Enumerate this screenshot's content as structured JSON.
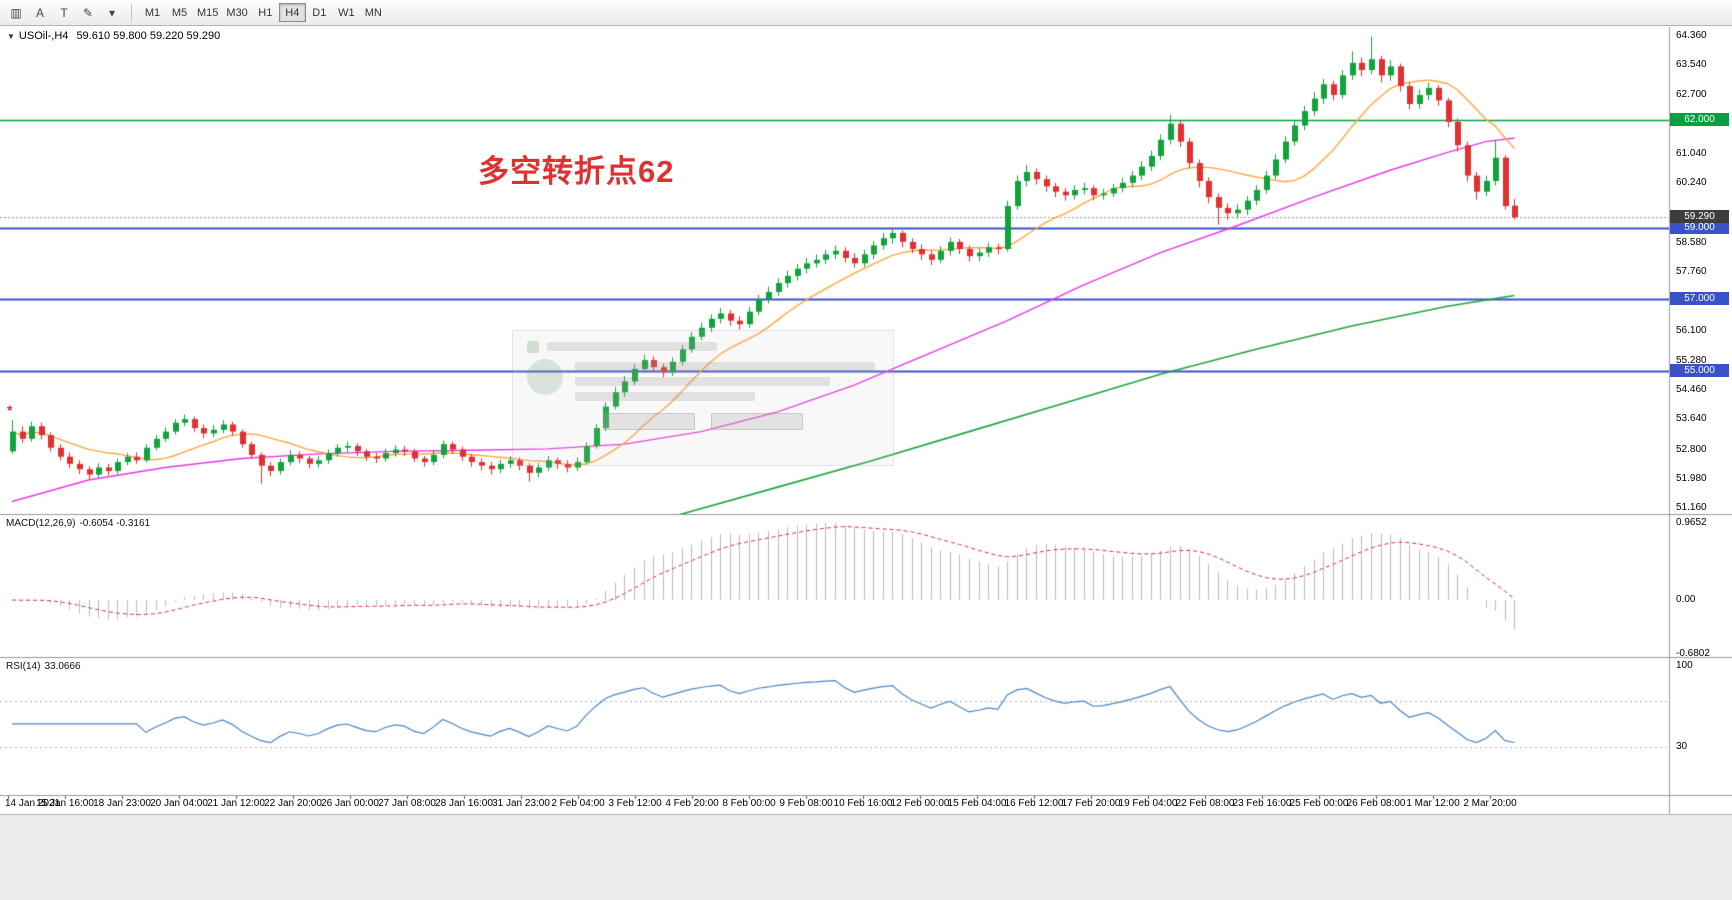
{
  "toolbar": {
    "icon_buttons": [
      {
        "name": "chart-grid-icon",
        "glyph": "▥"
      },
      {
        "name": "text-label-button",
        "glyph": "A"
      },
      {
        "name": "text-cursor-button",
        "glyph": "T"
      },
      {
        "name": "draw-tools-button",
        "glyph": "✎"
      },
      {
        "name": "draw-tools-chevron-icon",
        "glyph": "▾"
      }
    ],
    "timeframes": [
      "M1",
      "M5",
      "M15",
      "M30",
      "H1",
      "H4",
      "D1",
      "W1",
      "MN"
    ],
    "active_timeframe": "H4"
  },
  "symbol_line": {
    "arrow_glyph": "▼",
    "symbol": "USOil-,H4",
    "ohlc": "59.610 59.800 59.220 59.290"
  },
  "annotation": {
    "text": "多空转折点62",
    "color": "#e03030"
  },
  "watermark_dialog": {
    "present": true
  },
  "chart_data": {
    "type": "candlestick",
    "title": "USOil-,H4",
    "symbol": "USOil-",
    "timeframe": "H4",
    "up_color": "#12a23c",
    "down_color": "#e03030",
    "price_axis": {
      "min": 51.0,
      "max": 64.6,
      "ticks": [
        "64.360",
        "63.540",
        "62.700",
        "61.040",
        "60.240",
        "58.580",
        "57.760",
        "56.100",
        "55.280",
        "54.460",
        "53.640",
        "52.800",
        "51.980",
        "51.160"
      ]
    },
    "candles": [
      [
        52.75,
        53.62,
        52.68,
        53.3
      ],
      [
        53.3,
        53.45,
        52.98,
        53.1
      ],
      [
        53.1,
        53.58,
        53.02,
        53.45
      ],
      [
        53.45,
        53.55,
        53.08,
        53.2
      ],
      [
        53.2,
        53.28,
        52.75,
        52.85
      ],
      [
        52.85,
        52.95,
        52.5,
        52.6
      ],
      [
        52.6,
        52.72,
        52.28,
        52.4
      ],
      [
        52.4,
        52.5,
        52.12,
        52.25
      ],
      [
        52.25,
        52.33,
        51.98,
        52.1
      ],
      [
        52.1,
        52.42,
        52.02,
        52.3
      ],
      [
        52.3,
        52.4,
        52.08,
        52.2
      ],
      [
        52.2,
        52.55,
        52.12,
        52.45
      ],
      [
        52.45,
        52.7,
        52.36,
        52.6
      ],
      [
        52.6,
        52.72,
        52.4,
        52.5
      ],
      [
        52.5,
        52.95,
        52.44,
        52.85
      ],
      [
        52.85,
        53.2,
        52.78,
        53.1
      ],
      [
        53.1,
        53.42,
        53.02,
        53.3
      ],
      [
        53.3,
        53.65,
        53.22,
        53.55
      ],
      [
        53.55,
        53.78,
        53.45,
        53.65
      ],
      [
        53.65,
        53.72,
        53.3,
        53.4
      ],
      [
        53.4,
        53.5,
        53.12,
        53.25
      ],
      [
        53.25,
        53.48,
        53.15,
        53.35
      ],
      [
        53.35,
        53.62,
        53.26,
        53.5
      ],
      [
        53.5,
        53.58,
        53.18,
        53.3
      ],
      [
        53.3,
        53.36,
        52.85,
        52.95
      ],
      [
        52.95,
        53.02,
        52.55,
        52.65
      ],
      [
        52.65,
        52.72,
        51.85,
        52.35
      ],
      [
        52.35,
        52.45,
        52.05,
        52.2
      ],
      [
        52.2,
        52.55,
        52.1,
        52.45
      ],
      [
        52.45,
        52.78,
        52.36,
        52.65
      ],
      [
        52.65,
        52.75,
        52.42,
        52.55
      ],
      [
        52.55,
        52.62,
        52.28,
        52.4
      ],
      [
        52.4,
        52.62,
        52.3,
        52.5
      ],
      [
        52.5,
        52.8,
        52.4,
        52.7
      ],
      [
        52.7,
        52.95,
        52.6,
        52.85
      ],
      [
        52.85,
        53.02,
        52.72,
        52.9
      ],
      [
        52.9,
        52.98,
        52.62,
        52.75
      ],
      [
        52.75,
        52.82,
        52.48,
        52.6
      ],
      [
        52.6,
        52.7,
        52.42,
        52.55
      ],
      [
        52.55,
        52.82,
        52.46,
        52.7
      ],
      [
        52.7,
        52.92,
        52.6,
        52.8
      ],
      [
        52.8,
        52.9,
        52.62,
        52.75
      ],
      [
        52.75,
        52.82,
        52.45,
        52.55
      ],
      [
        52.55,
        52.62,
        52.32,
        52.45
      ],
      [
        52.45,
        52.78,
        52.36,
        52.65
      ],
      [
        52.65,
        53.05,
        52.55,
        52.95
      ],
      [
        52.95,
        53.02,
        52.68,
        52.8
      ],
      [
        52.8,
        52.88,
        52.48,
        52.6
      ],
      [
        52.6,
        52.68,
        52.32,
        52.45
      ],
      [
        52.45,
        52.55,
        52.22,
        52.35
      ],
      [
        52.35,
        52.45,
        52.1,
        52.25
      ],
      [
        52.25,
        52.52,
        52.14,
        52.4
      ],
      [
        52.4,
        52.62,
        52.28,
        52.5
      ],
      [
        52.5,
        52.58,
        52.22,
        52.35
      ],
      [
        52.35,
        52.42,
        51.9,
        52.15
      ],
      [
        52.15,
        52.42,
        52.02,
        52.3
      ],
      [
        52.3,
        52.62,
        52.2,
        52.5
      ],
      [
        52.5,
        52.58,
        52.26,
        52.4
      ],
      [
        52.4,
        52.5,
        52.16,
        52.3
      ],
      [
        52.3,
        52.58,
        52.2,
        52.45
      ],
      [
        52.45,
        53.0,
        52.38,
        52.9
      ],
      [
        52.9,
        53.52,
        52.82,
        53.4
      ],
      [
        53.4,
        54.12,
        53.32,
        54.0
      ],
      [
        54.0,
        54.55,
        53.92,
        54.4
      ],
      [
        54.4,
        54.85,
        54.28,
        54.7
      ],
      [
        54.7,
        55.18,
        54.6,
        55.05
      ],
      [
        55.05,
        55.45,
        54.95,
        55.3
      ],
      [
        55.3,
        55.4,
        54.98,
        55.1
      ],
      [
        55.1,
        55.2,
        54.82,
        54.95
      ],
      [
        54.95,
        55.38,
        54.85,
        55.25
      ],
      [
        55.25,
        55.72,
        55.15,
        55.6
      ],
      [
        55.6,
        56.08,
        55.5,
        55.95
      ],
      [
        55.95,
        56.35,
        55.85,
        56.2
      ],
      [
        56.2,
        56.58,
        56.08,
        56.45
      ],
      [
        56.45,
        56.75,
        56.32,
        56.6
      ],
      [
        56.6,
        56.7,
        56.26,
        56.4
      ],
      [
        56.4,
        56.52,
        56.15,
        56.3
      ],
      [
        56.3,
        56.78,
        56.2,
        56.65
      ],
      [
        56.65,
        57.12,
        56.55,
        57.0
      ],
      [
        57.0,
        57.35,
        56.88,
        57.2
      ],
      [
        57.2,
        57.58,
        57.08,
        57.45
      ],
      [
        57.45,
        57.8,
        57.32,
        57.65
      ],
      [
        57.65,
        57.98,
        57.52,
        57.85
      ],
      [
        57.85,
        58.15,
        57.72,
        58.0
      ],
      [
        58.0,
        58.25,
        57.88,
        58.1
      ],
      [
        58.1,
        58.38,
        57.98,
        58.25
      ],
      [
        58.25,
        58.5,
        58.12,
        58.35
      ],
      [
        58.35,
        58.45,
        58.02,
        58.15
      ],
      [
        58.15,
        58.28,
        57.88,
        58.0
      ],
      [
        58.0,
        58.38,
        57.9,
        58.25
      ],
      [
        58.25,
        58.62,
        58.12,
        58.5
      ],
      [
        58.5,
        58.85,
        58.38,
        58.7
      ],
      [
        58.7,
        58.95,
        58.55,
        58.85
      ],
      [
        58.85,
        58.92,
        58.45,
        58.6
      ],
      [
        58.6,
        58.7,
        58.28,
        58.4
      ],
      [
        58.4,
        58.52,
        58.1,
        58.25
      ],
      [
        58.25,
        58.35,
        57.95,
        58.1
      ],
      [
        58.1,
        58.48,
        58.0,
        58.35
      ],
      [
        58.35,
        58.72,
        58.22,
        58.6
      ],
      [
        58.6,
        58.68,
        58.26,
        58.4
      ],
      [
        58.4,
        58.5,
        58.05,
        58.2
      ],
      [
        58.2,
        58.42,
        58.06,
        58.3
      ],
      [
        58.3,
        58.58,
        58.18,
        58.45
      ],
      [
        58.45,
        58.55,
        58.25,
        58.4
      ],
      [
        58.4,
        59.75,
        58.32,
        59.6
      ],
      [
        59.6,
        60.45,
        59.5,
        60.3
      ],
      [
        60.3,
        60.75,
        60.15,
        60.55
      ],
      [
        60.55,
        60.65,
        60.2,
        60.35
      ],
      [
        60.35,
        60.45,
        60.0,
        60.15
      ],
      [
        60.15,
        60.25,
        59.85,
        60.0
      ],
      [
        60.0,
        60.1,
        59.75,
        59.9
      ],
      [
        59.9,
        60.18,
        59.78,
        60.05
      ],
      [
        60.05,
        60.25,
        59.92,
        60.1
      ],
      [
        60.1,
        60.18,
        59.76,
        59.9
      ],
      [
        59.9,
        60.08,
        59.78,
        59.95
      ],
      [
        59.95,
        60.22,
        59.85,
        60.1
      ],
      [
        60.1,
        60.38,
        59.98,
        60.25
      ],
      [
        60.25,
        60.58,
        60.12,
        60.45
      ],
      [
        60.45,
        60.85,
        60.32,
        60.7
      ],
      [
        60.7,
        61.15,
        60.58,
        61.0
      ],
      [
        61.0,
        61.6,
        60.88,
        61.45
      ],
      [
        61.45,
        62.15,
        61.32,
        61.9
      ],
      [
        61.9,
        62.0,
        61.25,
        61.4
      ],
      [
        61.4,
        61.5,
        60.65,
        60.8
      ],
      [
        60.8,
        60.9,
        60.12,
        60.3
      ],
      [
        60.3,
        60.4,
        59.68,
        59.85
      ],
      [
        59.85,
        59.95,
        59.08,
        59.55
      ],
      [
        59.55,
        59.68,
        59.22,
        59.4
      ],
      [
        59.4,
        59.65,
        59.25,
        59.5
      ],
      [
        59.5,
        59.88,
        59.35,
        59.75
      ],
      [
        59.75,
        60.18,
        59.62,
        60.05
      ],
      [
        60.05,
        60.58,
        59.95,
        60.45
      ],
      [
        60.45,
        61.05,
        60.35,
        60.9
      ],
      [
        60.9,
        61.55,
        60.8,
        61.4
      ],
      [
        61.4,
        62.0,
        61.28,
        61.85
      ],
      [
        61.85,
        62.4,
        61.72,
        62.25
      ],
      [
        62.25,
        62.78,
        62.12,
        62.6
      ],
      [
        62.6,
        63.15,
        62.45,
        63.0
      ],
      [
        63.0,
        63.1,
        62.55,
        62.7
      ],
      [
        62.7,
        63.4,
        62.6,
        63.25
      ],
      [
        63.25,
        63.92,
        63.12,
        63.6
      ],
      [
        63.6,
        63.75,
        63.22,
        63.4
      ],
      [
        63.4,
        64.33,
        63.28,
        63.7
      ],
      [
        63.7,
        63.8,
        63.05,
        63.25
      ],
      [
        63.25,
        63.68,
        63.1,
        63.5
      ],
      [
        63.5,
        63.58,
        62.8,
        62.95
      ],
      [
        62.95,
        63.05,
        62.3,
        62.45
      ],
      [
        62.45,
        62.85,
        62.32,
        62.7
      ],
      [
        62.7,
        63.05,
        62.55,
        62.9
      ],
      [
        62.9,
        62.98,
        62.4,
        62.55
      ],
      [
        62.55,
        62.62,
        61.8,
        61.95
      ],
      [
        61.95,
        62.05,
        61.12,
        61.3
      ],
      [
        61.3,
        61.4,
        60.28,
        60.45
      ],
      [
        60.45,
        60.55,
        59.78,
        60.0
      ],
      [
        60.0,
        60.45,
        59.88,
        60.3
      ],
      [
        60.3,
        61.42,
        60.18,
        60.95
      ],
      [
        60.95,
        61.02,
        59.5,
        59.6
      ],
      [
        59.61,
        59.8,
        59.22,
        59.29
      ]
    ],
    "moving_averages": {
      "orange": {
        "color": "#ffa63e",
        "period": 12
      },
      "magenta": {
        "color": "#e838e8",
        "points": [
          [
            0,
            51.35
          ],
          [
            8,
            51.95
          ],
          [
            16,
            52.3
          ],
          [
            24,
            52.55
          ],
          [
            32,
            52.68
          ],
          [
            40,
            52.75
          ],
          [
            48,
            52.78
          ],
          [
            56,
            52.82
          ],
          [
            64,
            52.95
          ],
          [
            72,
            53.3
          ],
          [
            80,
            53.85
          ],
          [
            88,
            54.6
          ],
          [
            96,
            55.5
          ],
          [
            104,
            56.4
          ],
          [
            112,
            57.4
          ],
          [
            120,
            58.3
          ],
          [
            128,
            59.05
          ],
          [
            136,
            59.85
          ],
          [
            144,
            60.6
          ],
          [
            150,
            61.1
          ],
          [
            154,
            61.4
          ],
          [
            157,
            61.5
          ]
        ]
      },
      "green": {
        "color": "#1fa53c",
        "points": [
          [
            60,
            50.35
          ],
          [
            70,
            51.0
          ],
          [
            80,
            51.75
          ],
          [
            90,
            52.5
          ],
          [
            100,
            53.3
          ],
          [
            110,
            54.1
          ],
          [
            120,
            54.9
          ],
          [
            130,
            55.6
          ],
          [
            140,
            56.25
          ],
          [
            150,
            56.8
          ],
          [
            157,
            57.1
          ]
        ]
      }
    },
    "hlines": [
      {
        "price": 62.0,
        "label": "62.000",
        "color": "#089f40",
        "width": 1.4
      },
      {
        "price": 59.0,
        "label": "59.000",
        "color": "#3a52c8",
        "width": 2
      },
      {
        "price": 57.0,
        "label": "57.000",
        "color": "#3a52c8",
        "width": 2
      },
      {
        "price": 55.0,
        "label": "55.000",
        "color": "#3a52c8",
        "width": 2
      }
    ],
    "current_price": {
      "value": 59.29,
      "label": "59.290",
      "badge_bg": "#3d3d3d",
      "line_color": "#9a9a9a"
    },
    "marker": {
      "glyph": "*",
      "color": "#e03030",
      "index": 0,
      "price": 53.95
    },
    "macd": {
      "label": "MACD(12,26,9)",
      "values_text": "-0.6054 -0.3161",
      "params": [
        12,
        26,
        9
      ],
      "bar_color": "#bcbcbc",
      "signal_color": "#e03030",
      "axis_ticks": [
        {
          "v": 0.9652,
          "t": "0.9652"
        },
        {
          "v": 0,
          "t": "0.00"
        },
        {
          "v": -0.6802,
          "t": "-0.6802"
        }
      ]
    },
    "rsi": {
      "label": "RSI(14)",
      "value_text": "33.0666",
      "period": 14,
      "color": "#4a86c8",
      "levels": [
        70,
        30
      ],
      "axis_ticks": [
        {
          "v": 100,
          "t": "100"
        },
        {
          "v": 30,
          "t": "30"
        }
      ]
    },
    "time_axis": {
      "labels": [
        "14 Jan 2021",
        "15 Jan 16:00",
        "18 Jan 23:00",
        "20 Jan 04:00",
        "21 Jan 12:00",
        "22 Jan 20:00",
        "26 Jan 00:00",
        "27 Jan 08:00",
        "28 Jan 16:00",
        "31 Jan 23:00",
        "2 Feb 04:00",
        "3 Feb 12:00",
        "4 Feb 20:00",
        "8 Feb 00:00",
        "9 Feb 08:00",
        "10 Feb 16:00",
        "12 Feb 00:00",
        "15 Feb 04:00",
        "16 Feb 12:00",
        "17 Feb 20:00",
        "19 Feb 04:00",
        "22 Feb 08:00",
        "23 Feb 16:00",
        "25 Feb 00:00",
        "26 Feb 08:00",
        "1 Mar 12:00",
        "2 Mar 20:00"
      ]
    }
  }
}
